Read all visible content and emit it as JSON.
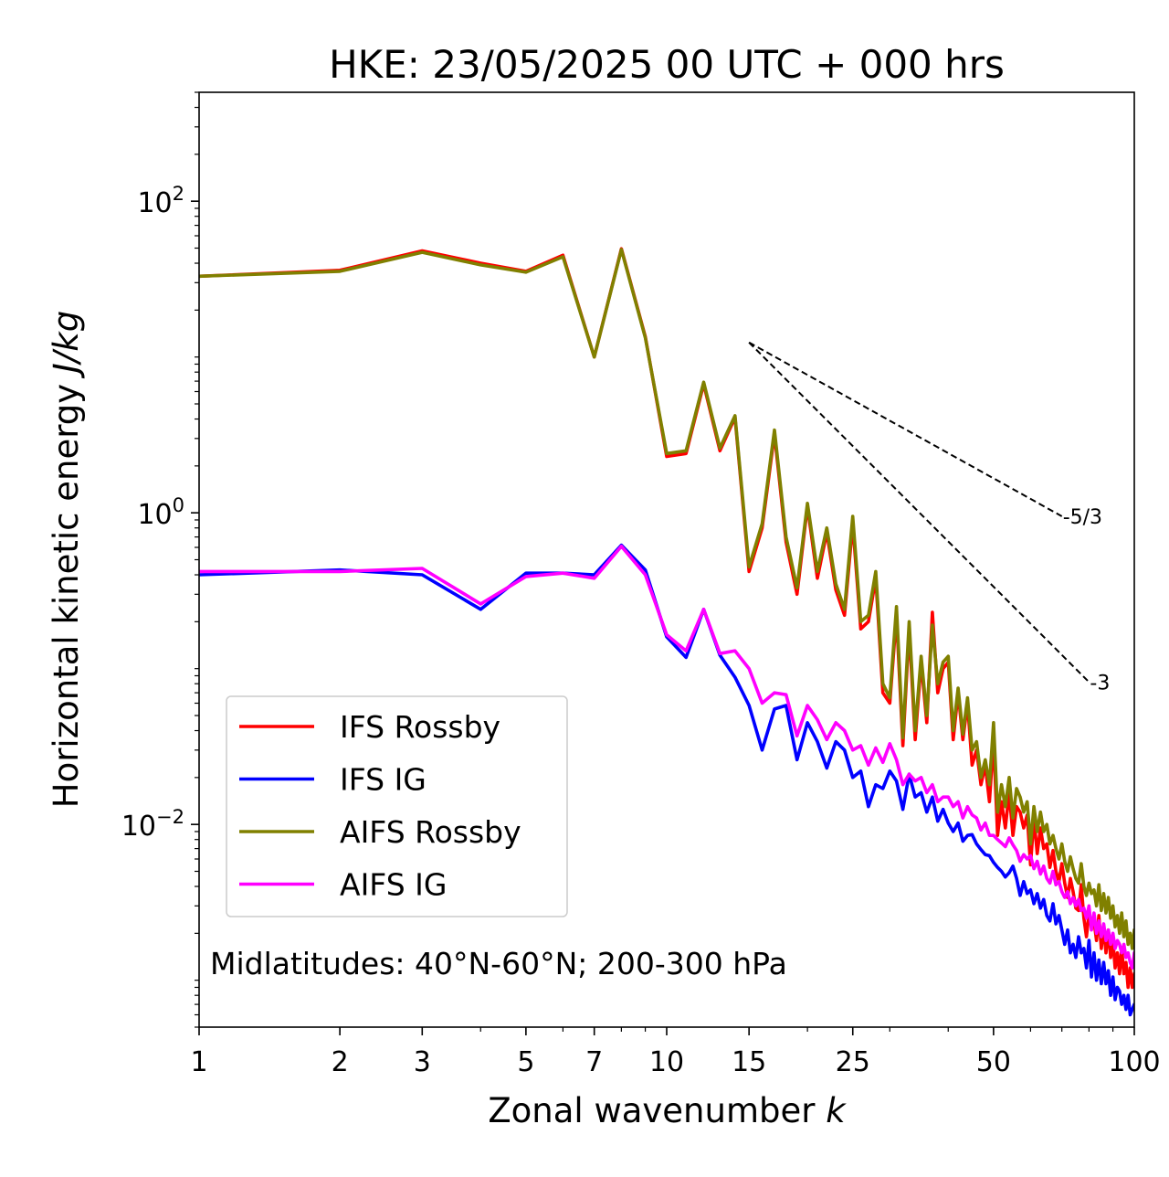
{
  "chart_data": {
    "type": "line",
    "title": "HKE: 23/05/2025 00 UTC + 000 hrs",
    "xlabel": "Zonal wavenumber",
    "xlabel_symbol": "k",
    "ylabel": "Horizontal kinetic energy",
    "ylabel_units": "J/kg",
    "xscale": "log",
    "yscale": "log",
    "xlim": [
      1,
      100
    ],
    "ylim": [
      0.0005,
      500
    ],
    "x_ticks": [
      1,
      2,
      3,
      5,
      7,
      10,
      15,
      25,
      50,
      100
    ],
    "x_tick_labels": [
      "1",
      "2",
      "3",
      "5",
      "7",
      "10",
      "15",
      "25",
      "50",
      "100"
    ],
    "y_ticks": [
      0.01,
      1,
      100
    ],
    "y_tick_labels": [
      {
        "base": "10",
        "exp": "−2"
      },
      {
        "base": "10",
        "exp": "0"
      },
      {
        "base": "10",
        "exp": "2"
      }
    ],
    "grid": false,
    "legend_position": "lower-left",
    "annotation": "Midlatitudes: 40°N-60°N; 200-300 hPa",
    "reference_slopes": [
      {
        "label": "-5/3",
        "x": [
          15,
          70
        ],
        "y": [
          12.4,
          0.95
        ]
      },
      {
        "label": "-3",
        "x": [
          15,
          80
        ],
        "y": [
          12.4,
          0.082
        ]
      }
    ],
    "series": [
      {
        "name": "IFS Rossby",
        "color": "#ff0000",
        "x": [
          1,
          2,
          3,
          4,
          5,
          6,
          7,
          8,
          9,
          10,
          11,
          12,
          13,
          14,
          15,
          16,
          17,
          18,
          19,
          20,
          21,
          22,
          23,
          24,
          25,
          26,
          27,
          28,
          29,
          30,
          31,
          32,
          33,
          34,
          35,
          36,
          37,
          38,
          39,
          40,
          41,
          42,
          43,
          44,
          45,
          46,
          47,
          48,
          49,
          50,
          51,
          52,
          53,
          54,
          55,
          56,
          57,
          58,
          59,
          60,
          61,
          62,
          63,
          64,
          65,
          66,
          67,
          68,
          69,
          70,
          71,
          72,
          73,
          74,
          75,
          76,
          77,
          78,
          79,
          80,
          81,
          82,
          83,
          84,
          85,
          86,
          87,
          88,
          89,
          90,
          91,
          92,
          93,
          94,
          95,
          96,
          97,
          98,
          99,
          100
        ],
        "values": [
          33,
          36,
          48,
          40,
          35.5,
          45,
          10,
          49.5,
          13.5,
          2.3,
          2.4,
          6.7,
          2.5,
          4.1,
          0.42,
          0.8,
          3.2,
          0.65,
          0.3,
          1.1,
          0.38,
          0.75,
          0.32,
          0.22,
          0.85,
          0.18,
          0.2,
          0.38,
          0.07,
          0.06,
          0.22,
          0.032,
          0.18,
          0.035,
          0.11,
          0.045,
          0.23,
          0.07,
          0.1,
          0.11,
          0.035,
          0.07,
          0.035,
          0.06,
          0.024,
          0.03,
          0.018,
          0.024,
          0.014,
          0.035,
          0.0085,
          0.014,
          0.0095,
          0.016,
          0.0085,
          0.013,
          0.012,
          0.0095,
          0.0115,
          0.0055,
          0.011,
          0.0065,
          0.0095,
          0.007,
          0.0075,
          0.0053,
          0.0068,
          0.005,
          0.0043,
          0.0056,
          0.0042,
          0.0034,
          0.0045,
          0.0037,
          0.0029,
          0.0028,
          0.0041,
          0.0025,
          0.0019,
          0.0027,
          0.0022,
          0.0024,
          0.0018,
          0.0026,
          0.0016,
          0.0022,
          0.0015,
          0.0021,
          0.0014,
          0.0018,
          0.0012,
          0.0015,
          0.0011,
          0.0016,
          0.0011,
          0.0013,
          0.0009,
          0.0012,
          0.0009,
          0.0011
        ]
      },
      {
        "name": "IFS IG",
        "color": "#0000ff",
        "x": [
          1,
          2,
          3,
          4,
          5,
          6,
          7,
          8,
          9,
          10,
          11,
          12,
          13,
          14,
          15,
          16,
          17,
          18,
          19,
          20,
          21,
          22,
          23,
          24,
          25,
          26,
          27,
          28,
          29,
          30,
          31,
          32,
          33,
          34,
          35,
          36,
          37,
          38,
          39,
          40,
          41,
          42,
          43,
          44,
          45,
          46,
          47,
          48,
          49,
          50,
          51,
          52,
          53,
          54,
          55,
          56,
          57,
          58,
          59,
          60,
          61,
          62,
          63,
          64,
          65,
          66,
          67,
          68,
          69,
          70,
          71,
          72,
          73,
          74,
          75,
          76,
          77,
          78,
          79,
          80,
          81,
          82,
          83,
          84,
          85,
          86,
          87,
          88,
          89,
          90,
          91,
          92,
          93,
          94,
          95,
          96,
          97,
          98,
          99,
          100
        ],
        "values": [
          0.4,
          0.43,
          0.4,
          0.24,
          0.41,
          0.41,
          0.4,
          0.62,
          0.43,
          0.16,
          0.118,
          0.24,
          0.122,
          0.088,
          0.058,
          0.03,
          0.055,
          0.058,
          0.026,
          0.045,
          0.034,
          0.023,
          0.034,
          0.03,
          0.02,
          0.022,
          0.013,
          0.018,
          0.017,
          0.022,
          0.019,
          0.0125,
          0.021,
          0.015,
          0.016,
          0.012,
          0.015,
          0.0105,
          0.0125,
          0.0102,
          0.009,
          0.0102,
          0.0078,
          0.0085,
          0.0086,
          0.0075,
          0.0069,
          0.0064,
          0.0063,
          0.0057,
          0.0053,
          0.005,
          0.0046,
          0.0049,
          0.0054,
          0.0045,
          0.0035,
          0.0043,
          0.0036,
          0.0038,
          0.0031,
          0.0036,
          0.0029,
          0.0033,
          0.0026,
          0.0024,
          0.0031,
          0.0023,
          0.0026,
          0.0021,
          0.0017,
          0.0021,
          0.0015,
          0.0017,
          0.0014,
          0.0019,
          0.0015,
          0.0016,
          0.0012,
          0.0018,
          0.00105,
          0.0015,
          0.001,
          0.00135,
          0.00095,
          0.0013,
          0.00095,
          0.00115,
          0.0008,
          0.00105,
          0.00075,
          0.0009,
          0.00085,
          0.0007,
          0.0008,
          0.00065,
          0.0008,
          0.0006,
          0.00065,
          0.0007
        ]
      },
      {
        "name": "AIFS Rossby",
        "color": "#808000",
        "x": [
          1,
          2,
          3,
          4,
          5,
          6,
          7,
          8,
          9,
          10,
          11,
          12,
          13,
          14,
          15,
          16,
          17,
          18,
          19,
          20,
          21,
          22,
          23,
          24,
          25,
          26,
          27,
          28,
          29,
          30,
          31,
          32,
          33,
          34,
          35,
          36,
          37,
          38,
          39,
          40,
          41,
          42,
          43,
          44,
          45,
          46,
          47,
          48,
          49,
          50,
          51,
          52,
          53,
          54,
          55,
          56,
          57,
          58,
          59,
          60,
          61,
          62,
          63,
          64,
          65,
          66,
          67,
          68,
          69,
          70,
          71,
          72,
          73,
          74,
          75,
          76,
          77,
          78,
          79,
          80,
          81,
          82,
          83,
          84,
          85,
          86,
          87,
          88,
          89,
          90,
          91,
          92,
          93,
          94,
          95,
          96,
          97,
          98,
          99,
          100
        ],
        "values": [
          33,
          35.5,
          47,
          39,
          35,
          44,
          10,
          49,
          13.3,
          2.4,
          2.5,
          6.9,
          2.6,
          4.2,
          0.45,
          0.85,
          3.4,
          0.7,
          0.33,
          1.15,
          0.42,
          0.8,
          0.35,
          0.24,
          0.95,
          0.2,
          0.22,
          0.42,
          0.08,
          0.065,
          0.25,
          0.036,
          0.2,
          0.04,
          0.12,
          0.05,
          0.19,
          0.08,
          0.11,
          0.12,
          0.04,
          0.075,
          0.038,
          0.065,
          0.03,
          0.034,
          0.02,
          0.026,
          0.018,
          0.045,
          0.012,
          0.018,
          0.013,
          0.02,
          0.011,
          0.017,
          0.015,
          0.012,
          0.014,
          0.0075,
          0.013,
          0.009,
          0.012,
          0.009,
          0.01,
          0.0075,
          0.0085,
          0.007,
          0.006,
          0.0075,
          0.0058,
          0.005,
          0.0062,
          0.0052,
          0.0045,
          0.0042,
          0.0056,
          0.004,
          0.0035,
          0.0042,
          0.0036,
          0.0038,
          0.003,
          0.0041,
          0.0028,
          0.0036,
          0.0027,
          0.0034,
          0.0025,
          0.003,
          0.0022,
          0.0026,
          0.002,
          0.0027,
          0.0019,
          0.0024,
          0.0017,
          0.002,
          0.0016,
          0.0021
        ]
      },
      {
        "name": "AIFS IG",
        "color": "#ff00ff",
        "x": [
          1,
          2,
          3,
          4,
          5,
          6,
          7,
          8,
          9,
          10,
          11,
          12,
          13,
          14,
          15,
          16,
          17,
          18,
          19,
          20,
          21,
          22,
          23,
          24,
          25,
          26,
          27,
          28,
          29,
          30,
          31,
          32,
          33,
          34,
          35,
          36,
          37,
          38,
          39,
          40,
          41,
          42,
          43,
          44,
          45,
          46,
          47,
          48,
          49,
          50,
          51,
          52,
          53,
          54,
          55,
          56,
          57,
          58,
          59,
          60,
          61,
          62,
          63,
          64,
          65,
          66,
          67,
          68,
          69,
          70,
          71,
          72,
          73,
          74,
          75,
          76,
          77,
          78,
          79,
          80,
          81,
          82,
          83,
          84,
          85,
          86,
          87,
          88,
          89,
          90,
          91,
          92,
          93,
          94,
          95,
          96,
          97,
          98,
          99,
          100
        ],
        "values": [
          0.42,
          0.42,
          0.44,
          0.26,
          0.39,
          0.41,
          0.38,
          0.61,
          0.4,
          0.165,
          0.13,
          0.24,
          0.125,
          0.13,
          0.1,
          0.06,
          0.07,
          0.068,
          0.037,
          0.058,
          0.047,
          0.035,
          0.045,
          0.04,
          0.03,
          0.032,
          0.024,
          0.031,
          0.025,
          0.033,
          0.026,
          0.018,
          0.021,
          0.019,
          0.02,
          0.016,
          0.018,
          0.014,
          0.015,
          0.015,
          0.013,
          0.014,
          0.011,
          0.013,
          0.0115,
          0.011,
          0.0092,
          0.0102,
          0.0085,
          0.0085,
          0.008,
          0.0076,
          0.0072,
          0.0082,
          0.0074,
          0.0068,
          0.0058,
          0.0064,
          0.006,
          0.0063,
          0.0052,
          0.0058,
          0.0048,
          0.0054,
          0.0045,
          0.0042,
          0.005,
          0.0041,
          0.0043,
          0.0037,
          0.0034,
          0.0037,
          0.0031,
          0.0034,
          0.003,
          0.0033,
          0.0028,
          0.0029,
          0.0025,
          0.003,
          0.0021,
          0.0027,
          0.002,
          0.0024,
          0.0019,
          0.0023,
          0.0018,
          0.0021,
          0.0017,
          0.002,
          0.0016,
          0.0018,
          0.0017,
          0.0015,
          0.0017,
          0.0014,
          0.0015,
          0.0013,
          0.0012,
          0.0015
        ]
      }
    ]
  }
}
